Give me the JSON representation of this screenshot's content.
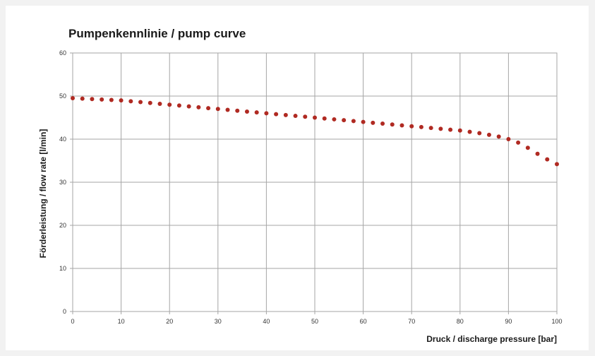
{
  "chart_data": {
    "type": "scatter",
    "title": "Pumpenkennlinie / pump curve",
    "xlabel": "Druck  /  discharge pressure [bar]",
    "ylabel": "Förderleistung  / flow rate [l/min]",
    "xlim": [
      0,
      100
    ],
    "ylim": [
      0,
      60
    ],
    "x_ticks": [
      "0",
      "10",
      "20",
      "30",
      "40",
      "50",
      "60",
      "70",
      "80",
      "90",
      "100"
    ],
    "y_ticks": [
      "0",
      "10",
      "20",
      "30",
      "40",
      "50",
      "60"
    ],
    "grid": true,
    "legend": "none",
    "marker_color": "#b02a22",
    "grid_color": "#a6a6a6",
    "series": [
      {
        "x": [
          0,
          2,
          4,
          6,
          8,
          10,
          12,
          14,
          16,
          18,
          20,
          22,
          24,
          26,
          28,
          30,
          32,
          34,
          36,
          38,
          40,
          42,
          44,
          46,
          48,
          50,
          52,
          54,
          56,
          58,
          60,
          62,
          64,
          66,
          68,
          70,
          72,
          74,
          76,
          78,
          80,
          82,
          84,
          86,
          88,
          90,
          92,
          94,
          96,
          98,
          100
        ],
        "y": [
          49.5,
          49.4,
          49.3,
          49.2,
          49.1,
          49.0,
          48.8,
          48.6,
          48.4,
          48.2,
          48.0,
          47.8,
          47.6,
          47.4,
          47.2,
          47.0,
          46.8,
          46.6,
          46.4,
          46.2,
          46.0,
          45.8,
          45.6,
          45.4,
          45.2,
          45.0,
          44.8,
          44.6,
          44.4,
          44.2,
          44.0,
          43.8,
          43.6,
          43.4,
          43.2,
          43.0,
          42.8,
          42.6,
          42.4,
          42.2,
          42.0,
          41.7,
          41.4,
          41.0,
          40.6,
          40.0,
          39.2,
          38.0,
          36.6,
          35.3,
          34.2
        ]
      }
    ]
  }
}
